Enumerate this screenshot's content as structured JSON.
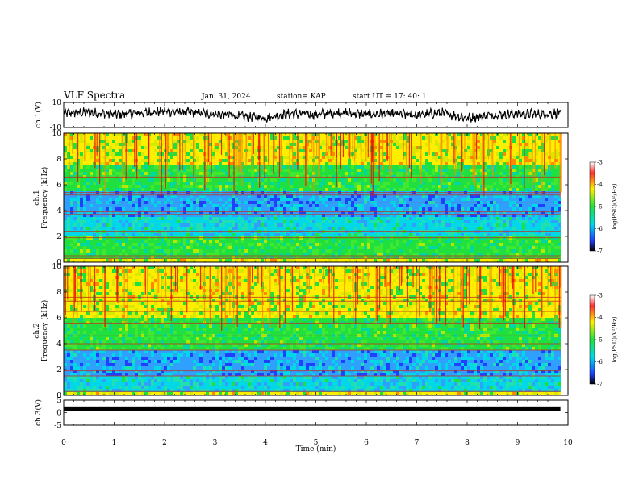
{
  "header": {
    "title": "VLF Spectra",
    "date": "Jan. 31, 2024",
    "station": "station= KAP",
    "start": "start  UT  =   17: 40: 1"
  },
  "colors": {
    "blue": "#2040ff",
    "cyan": "#00d8e8",
    "green": "#20e040",
    "yellow": "#ffee00",
    "red": "#ee0000"
  },
  "chart_data": [
    {
      "id": "ch1-waveform",
      "type": "line",
      "ylabel": "ch.1(V)",
      "ylim": [
        -10,
        10
      ],
      "yticks": [
        "10",
        "-10"
      ],
      "xlim": [
        0,
        10
      ],
      "description_series": "noisy voltage trace around 0 V, amplitude roughly 3-4 V, dips near 8 min",
      "series": [
        {
          "x": [
            0,
            0.5,
            1,
            1.5,
            2,
            2.5,
            3,
            3.5,
            4,
            4.5,
            5,
            5.5,
            6,
            6.5,
            7,
            7.5,
            8,
            8.5,
            9,
            9.5,
            9.85
          ],
          "values": [
            1.5,
            2,
            0.5,
            1.5,
            3,
            2,
            1,
            -1,
            -2,
            1,
            0.5,
            2,
            0.5,
            1,
            0,
            1.5,
            -2.5,
            0,
            1,
            0.5,
            2
          ]
        }
      ]
    },
    {
      "id": "ch1-spectrogram",
      "type": "heatmap",
      "ylabel": "ch.1\nFrequency (kHz)",
      "ylim": [
        0,
        10
      ],
      "yticks": [
        "10",
        "8",
        "6",
        "4",
        "2",
        "0"
      ],
      "xlim": [
        0,
        10
      ],
      "colorbar": {
        "label": "log(PSD)(V²/Hz)",
        "range": [
          -7,
          -3
        ],
        "ticks": [
          "-3",
          "-4",
          "-5",
          "-6",
          "-7"
        ]
      },
      "bands_khz": [
        {
          "from": 0,
          "to": 0.3,
          "level": "yellow"
        },
        {
          "from": 0.3,
          "to": 2.0,
          "level": "green"
        },
        {
          "from": 2.0,
          "to": 3.6,
          "level": "cyan"
        },
        {
          "from": 3.6,
          "to": 5.6,
          "level": "cyan-blue"
        },
        {
          "from": 5.6,
          "to": 7.5,
          "level": "green"
        },
        {
          "from": 7.5,
          "to": 10,
          "level": "yellow"
        }
      ],
      "lines_khz": [
        0.3,
        0.5,
        1.9,
        2.4,
        3.7,
        3.9,
        4.6,
        5.2,
        5.4,
        6.6
      ]
    },
    {
      "id": "ch2-spectrogram",
      "type": "heatmap",
      "ylabel": "ch.2\nFrequency (kHz)",
      "ylim": [
        0,
        10
      ],
      "yticks": [
        "10",
        "8",
        "6",
        "4",
        "2",
        "0"
      ],
      "xlim": [
        0,
        10
      ],
      "colorbar": {
        "label": "log(PSD)(V²/Hz)",
        "range": [
          -7,
          -3
        ],
        "ticks": [
          "-3",
          "-4",
          "-5",
          "-6",
          "-7"
        ]
      },
      "bands_khz": [
        {
          "from": 0,
          "to": 0.3,
          "level": "yellow"
        },
        {
          "from": 0.3,
          "to": 1.5,
          "level": "cyan"
        },
        {
          "from": 1.5,
          "to": 3.6,
          "level": "cyan-blue"
        },
        {
          "from": 3.6,
          "to": 6.0,
          "level": "green"
        },
        {
          "from": 6.0,
          "to": 10,
          "level": "yellow"
        }
      ],
      "lines_khz": [
        0.3,
        1.5,
        1.9,
        3.5,
        4.0,
        4.6,
        5.6,
        6.5,
        7.3,
        7.6
      ]
    },
    {
      "id": "ch3-waveform",
      "type": "line",
      "ylabel": "ch.3(V)",
      "ylim": [
        -5,
        5
      ],
      "yticks": [
        "5",
        "0",
        "-5"
      ],
      "xlim": [
        0,
        10
      ],
      "xticks": [
        "0",
        "1",
        "2",
        "3",
        "4",
        "5",
        "6",
        "7",
        "8",
        "9",
        "10"
      ],
      "xlabel": "Time (min)",
      "series": [
        {
          "x": [
            0,
            9.85
          ],
          "values": [
            1.5,
            1.5
          ]
        }
      ]
    }
  ]
}
